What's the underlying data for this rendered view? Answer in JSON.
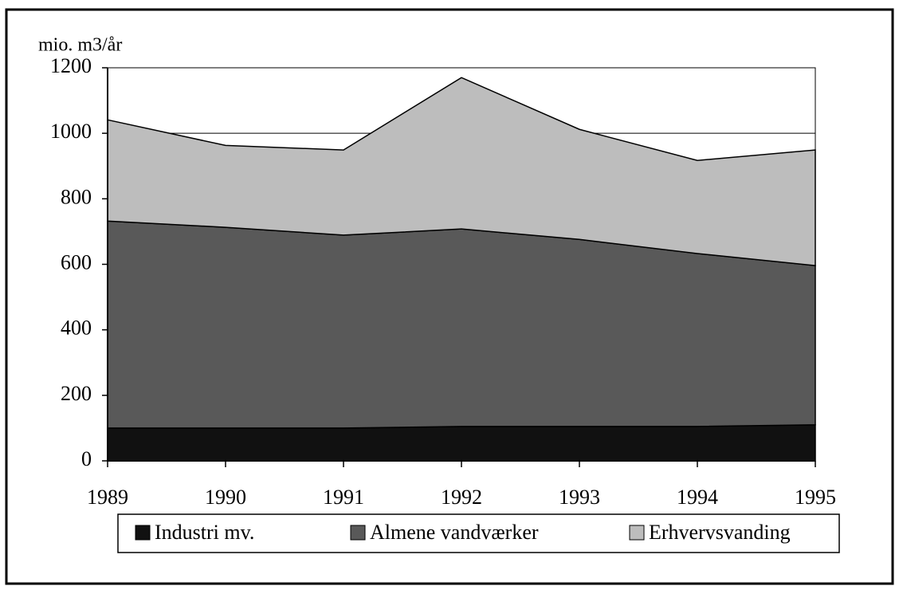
{
  "chart_data": {
    "type": "stacked_area",
    "y_axis_label": "mio. m3/år",
    "categories": [
      "1989",
      "1990",
      "1991",
      "1992",
      "1993",
      "1994",
      "1995"
    ],
    "series": [
      {
        "name": "Industri mv.",
        "color": "#111111",
        "values": [
          100,
          100,
          100,
          105,
          105,
          105,
          110
        ]
      },
      {
        "name": "Almene vandværker",
        "color": "#595959",
        "values": [
          632,
          613,
          589,
          603,
          571,
          528,
          486
        ]
      },
      {
        "name": "Erhvervsvanding",
        "color": "#bdbdbd",
        "values": [
          309,
          250,
          260,
          462,
          336,
          284,
          353
        ]
      }
    ],
    "ylim": [
      0,
      1200
    ],
    "yticks": [
      0,
      200,
      400,
      600,
      800,
      1000,
      1200
    ],
    "grid": true
  }
}
